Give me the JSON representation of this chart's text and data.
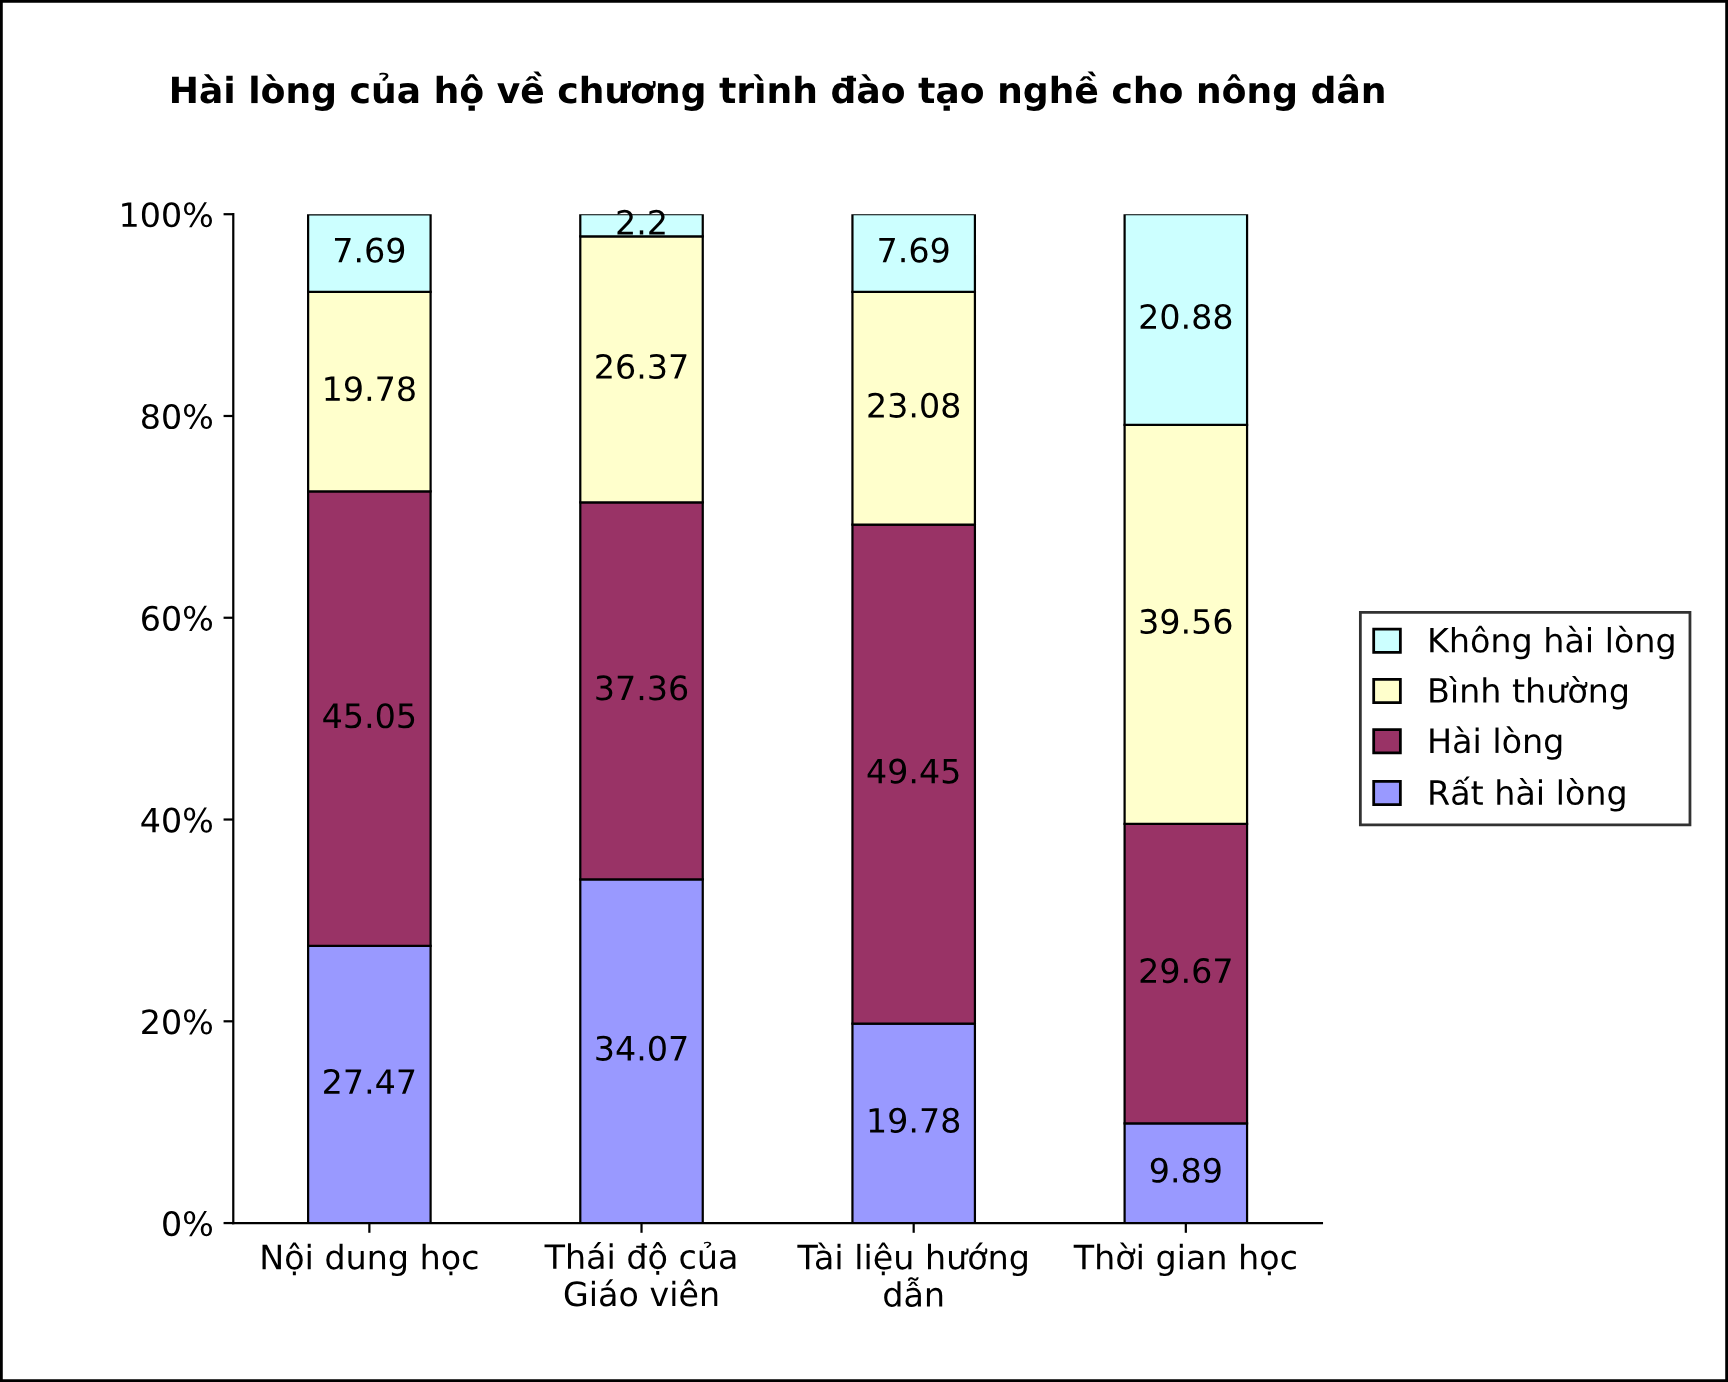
{
  "chart_data": {
    "type": "bar",
    "stacked": true,
    "title": "Hài lòng của hộ về chương trình đào tạo nghề cho nông dân",
    "categories": [
      "Nội dung học",
      "Thái độ của\nGiáo viên",
      "Tài liệu hướng\ndẫn",
      "Thời gian học"
    ],
    "series": [
      {
        "name": "Rất hài lòng",
        "color": "#9999ff",
        "values": [
          27.47,
          34.07,
          19.78,
          9.89
        ]
      },
      {
        "name": "Hài lòng",
        "color": "#993366",
        "values": [
          45.05,
          37.36,
          49.45,
          29.67
        ]
      },
      {
        "name": "Bình thường",
        "color": "#ffffcc",
        "values": [
          19.78,
          26.37,
          23.08,
          39.56
        ]
      },
      {
        "name": "Không hài lòng",
        "color": "#ccffff",
        "values": [
          7.69,
          2.2,
          7.69,
          20.88
        ]
      }
    ],
    "ylim": [
      0,
      100
    ],
    "yticks": [
      {
        "value": 0,
        "label": "0%"
      },
      {
        "value": 20,
        "label": "20%"
      },
      {
        "value": 40,
        "label": "40%"
      },
      {
        "value": 60,
        "label": "60%"
      },
      {
        "value": 80,
        "label": "80%"
      },
      {
        "value": 100,
        "label": "100%"
      }
    ],
    "data_labels": true,
    "grid": false,
    "legend": "right"
  }
}
